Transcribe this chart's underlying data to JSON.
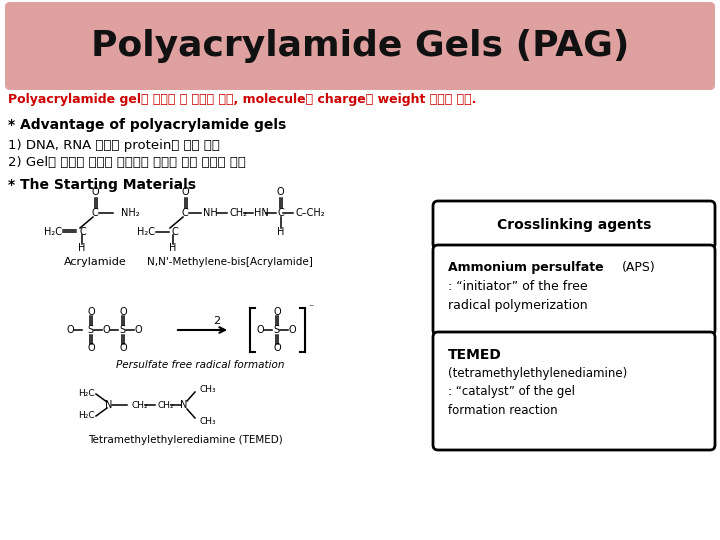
{
  "title": "Polyacrylamide Gels (PAG)",
  "title_bg": "#dfa0a0",
  "subtitle": "Polyacrylamide gel은 거르는 체 역할을 하여, molecule을 charge나 weight 따라서 분리.",
  "subtitle_color": "#cc0000",
  "section1_header": "* Advantage of polyacrylamide gels",
  "section1_line1": "1) DNA, RNA 그리고 protein의 분리 수행",
  "section1_line2": "2) Gel의 농도와 조성을 변화시켜 목적에 따른 분리가 용이",
  "section2_header": "* The Starting Materials",
  "box1_text": "Crosslinking agents",
  "box2_bold": "Ammonium persulfate",
  "box2_normal": " (APS)",
  "box2_line1": ": “initiator” of the free",
  "box2_line2": "radical polymerization",
  "box3_title": "TEMED",
  "box3_line1": "(tetramethylethylenediamine)",
  "box3_line2": ": “catalyst” of the gel",
  "box3_line3": "formation reaction",
  "bg_color": "#ffffff",
  "text_color": "#000000",
  "header_color": "#000000"
}
